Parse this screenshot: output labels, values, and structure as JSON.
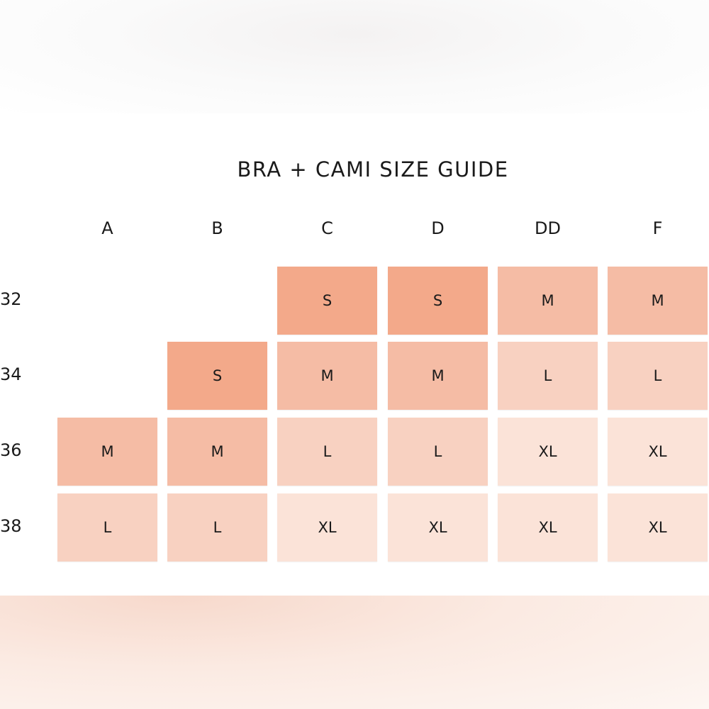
{
  "title": "BRA + CAMI SIZE GUIDE",
  "cup_sizes": [
    "A",
    "B",
    "C",
    "D",
    "DD",
    "F"
  ],
  "band_sizes": [
    "32",
    "34",
    "36",
    "38"
  ],
  "size_colors": {
    "S": "#f3a98a",
    "M": "#f5bca5",
    "L": "#f8d1c1",
    "XL": "#fbe3d8"
  },
  "grid": [
    [
      "",
      "",
      "S",
      "S",
      "M",
      "M"
    ],
    [
      "",
      "S",
      "M",
      "M",
      "L",
      "L"
    ],
    [
      "M",
      "M",
      "L",
      "L",
      "XL",
      "XL"
    ],
    [
      "L",
      "L",
      "XL",
      "XL",
      "XL",
      "XL"
    ]
  ]
}
